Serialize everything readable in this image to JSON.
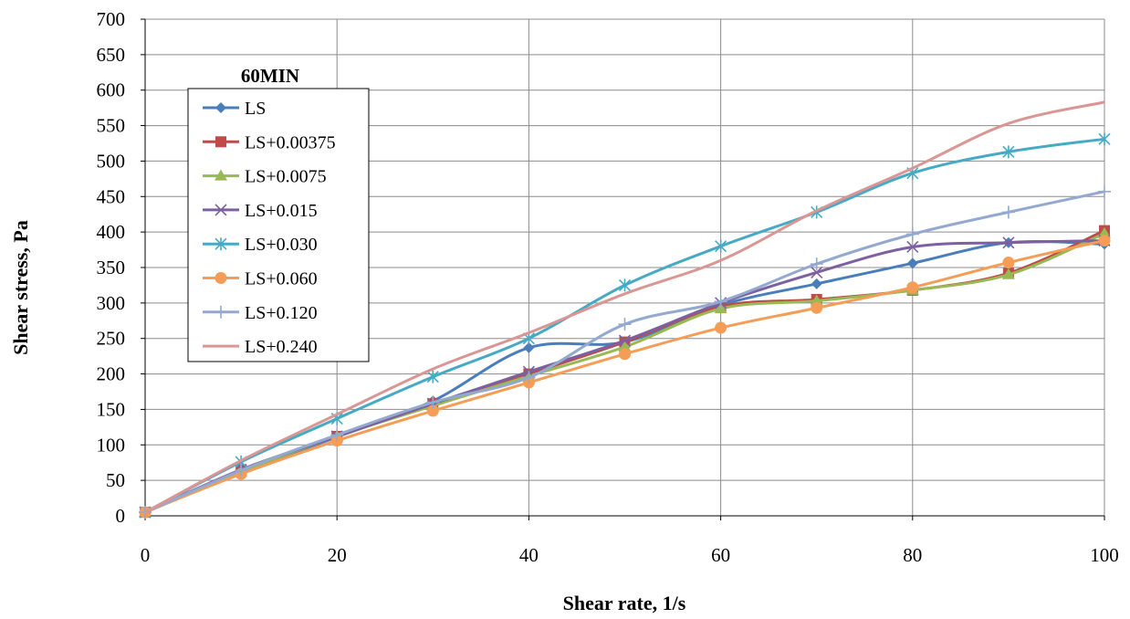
{
  "chart_data": {
    "type": "line",
    "title": "60MIN",
    "xlabel": "Shear rate, 1/s",
    "ylabel": "Shear stress, Pa",
    "xlim": [
      0,
      100
    ],
    "ylim": [
      0,
      700
    ],
    "x_ticks": [
      0,
      20,
      40,
      60,
      80,
      100
    ],
    "y_ticks": [
      0,
      50,
      100,
      150,
      200,
      250,
      300,
      350,
      400,
      450,
      500,
      550,
      600,
      650,
      700
    ],
    "grid": "major gridlines on",
    "legend_position": "top-left inside plot",
    "x": [
      0,
      10,
      20,
      30,
      40,
      50,
      60,
      70,
      80,
      90,
      100
    ],
    "series": [
      {
        "name": "LS",
        "color": "#4a7ebb",
        "marker": "diamond",
        "values": [
          5,
          62,
          111,
          162,
          237,
          245,
          297,
          327,
          356,
          385,
          383
        ]
      },
      {
        "name": "LS+0.00375",
        "color": "#be4b48",
        "marker": "square",
        "values": [
          5,
          65,
          112,
          158,
          200,
          245,
          295,
          305,
          318,
          342,
          402
        ]
      },
      {
        "name": "LS+0.0075",
        "color": "#98b954",
        "marker": "triangle",
        "values": [
          5,
          62,
          112,
          155,
          197,
          238,
          292,
          303,
          318,
          340,
          398
        ]
      },
      {
        "name": "LS+0.015",
        "color": "#7d60a0",
        "marker": "x",
        "values": [
          5,
          65,
          112,
          158,
          203,
          247,
          300,
          343,
          379,
          385,
          388
        ]
      },
      {
        "name": "LS+0.030",
        "color": "#46aac5",
        "marker": "asterisk",
        "values": [
          5,
          76,
          137,
          196,
          250,
          325,
          380,
          428,
          483,
          513,
          531
        ]
      },
      {
        "name": "LS+0.060",
        "color": "#f59d56",
        "marker": "circle",
        "values": [
          5,
          59,
          106,
          148,
          188,
          228,
          265,
          293,
          322,
          357,
          388
        ]
      },
      {
        "name": "LS+0.120",
        "color": "#93a9d0",
        "marker": "plus",
        "values": [
          5,
          64,
          114,
          160,
          195,
          270,
          302,
          355,
          397,
          428,
          457
        ]
      },
      {
        "name": "LS+0.240",
        "color": "#d99694",
        "marker": "none",
        "values": [
          5,
          78,
          143,
          207,
          258,
          313,
          360,
          430,
          490,
          553,
          583
        ]
      }
    ]
  }
}
